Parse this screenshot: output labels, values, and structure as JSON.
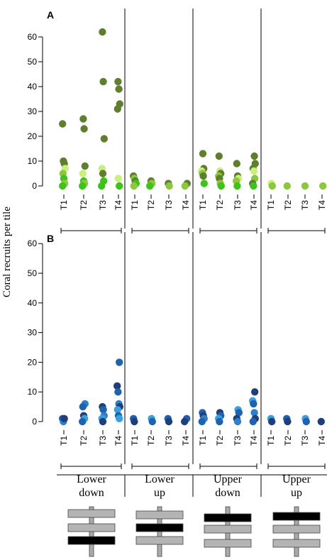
{
  "ylabel": "Coral recruits per tile",
  "timepoints": [
    "T1",
    "T2",
    "T3",
    "T4"
  ],
  "groups": [
    {
      "line1": "Lower",
      "line2": "down",
      "black_plate": 2
    },
    {
      "line1": "Lower",
      "line2": "up",
      "black_plate": 1
    },
    {
      "line1": "Upper",
      "line2": "down",
      "black_plate": 0
    },
    {
      "line1": "Upper",
      "line2": "up",
      "black_plate": 0
    }
  ],
  "chart_data": [
    {
      "panel": "A",
      "type": "scatter",
      "ylim": [
        0,
        60
      ],
      "yticks": [
        0,
        10,
        20,
        30,
        40,
        50,
        60
      ],
      "colors": {
        "dark": "#5f7f2e",
        "mid": "#8dc63f",
        "bright": "#3ec21c",
        "pale": "#c8f07a"
      },
      "points": [
        [
          0,
          0,
          25,
          "dark"
        ],
        [
          0,
          0,
          10,
          "dark"
        ],
        [
          0,
          0,
          9,
          "dark"
        ],
        [
          0,
          0,
          7,
          "pale"
        ],
        [
          0,
          0,
          5,
          "mid"
        ],
        [
          0,
          0,
          3,
          "bright"
        ],
        [
          0,
          0,
          1,
          "mid"
        ],
        [
          0,
          0,
          0,
          "bright"
        ],
        [
          0,
          1,
          27,
          "dark"
        ],
        [
          0,
          1,
          23,
          "dark"
        ],
        [
          0,
          1,
          8,
          "dark"
        ],
        [
          0,
          1,
          5,
          "pale"
        ],
        [
          0,
          1,
          2,
          "bright"
        ],
        [
          0,
          1,
          1,
          "mid"
        ],
        [
          0,
          1,
          0,
          "bright"
        ],
        [
          0,
          2,
          62,
          "dark"
        ],
        [
          0,
          2,
          42,
          "dark"
        ],
        [
          0,
          2,
          19,
          "dark"
        ],
        [
          0,
          2,
          7,
          "pale"
        ],
        [
          0,
          2,
          5,
          "dark"
        ],
        [
          0,
          2,
          2,
          "bright"
        ],
        [
          0,
          2,
          0,
          "bright"
        ],
        [
          0,
          3,
          42,
          "dark"
        ],
        [
          0,
          3,
          39,
          "dark"
        ],
        [
          0,
          3,
          33,
          "dark"
        ],
        [
          0,
          3,
          31,
          "dark"
        ],
        [
          0,
          3,
          3,
          "pale"
        ],
        [
          0,
          3,
          0,
          "bright"
        ],
        [
          1,
          0,
          4,
          "dark"
        ],
        [
          1,
          0,
          3,
          "mid"
        ],
        [
          1,
          0,
          2,
          "dark"
        ],
        [
          1,
          0,
          1,
          "bright"
        ],
        [
          1,
          0,
          0,
          "mid"
        ],
        [
          1,
          1,
          2,
          "dark"
        ],
        [
          1,
          1,
          1,
          "mid"
        ],
        [
          1,
          1,
          0,
          "bright"
        ],
        [
          1,
          2,
          1,
          "dark"
        ],
        [
          1,
          2,
          0,
          "mid"
        ],
        [
          1,
          3,
          1,
          "dark"
        ],
        [
          1,
          3,
          0,
          "mid"
        ],
        [
          2,
          0,
          13,
          "dark"
        ],
        [
          2,
          0,
          7,
          "dark"
        ],
        [
          2,
          0,
          6,
          "pale"
        ],
        [
          2,
          0,
          5,
          "mid"
        ],
        [
          2,
          0,
          4,
          "dark"
        ],
        [
          2,
          0,
          1,
          "bright"
        ],
        [
          2,
          1,
          12,
          "dark"
        ],
        [
          2,
          1,
          6,
          "pale"
        ],
        [
          2,
          1,
          5,
          "dark"
        ],
        [
          2,
          1,
          4,
          "mid"
        ],
        [
          2,
          1,
          3,
          "dark"
        ],
        [
          2,
          1,
          1,
          "mid"
        ],
        [
          2,
          1,
          0,
          "bright"
        ],
        [
          2,
          2,
          9,
          "dark"
        ],
        [
          2,
          2,
          4,
          "dark"
        ],
        [
          2,
          2,
          3,
          "pale"
        ],
        [
          2,
          2,
          2,
          "mid"
        ],
        [
          2,
          2,
          0,
          "bright"
        ],
        [
          2,
          3,
          12,
          "dark"
        ],
        [
          2,
          3,
          9,
          "dark"
        ],
        [
          2,
          3,
          7,
          "dark"
        ],
        [
          2,
          3,
          6,
          "pale"
        ],
        [
          2,
          3,
          3,
          "mid"
        ],
        [
          2,
          3,
          1,
          "dark"
        ],
        [
          2,
          3,
          0,
          "bright"
        ],
        [
          3,
          0,
          1,
          "pale"
        ],
        [
          3,
          0,
          0,
          "mid"
        ],
        [
          3,
          1,
          0,
          "mid"
        ],
        [
          3,
          2,
          0,
          "mid"
        ],
        [
          3,
          3,
          0,
          "mid"
        ]
      ]
    },
    {
      "panel": "B",
      "type": "scatter",
      "ylim": [
        0,
        60
      ],
      "yticks": [
        0,
        10,
        20,
        30,
        40,
        50,
        60
      ],
      "colors": {
        "navy": "#1f3f7a",
        "blue": "#1f62ad",
        "mid": "#2f80c8",
        "light": "#3aa0e0"
      },
      "points": [
        [
          0,
          0,
          1,
          "blue"
        ],
        [
          0,
          0,
          0,
          "mid"
        ],
        [
          0,
          0,
          1,
          "navy"
        ],
        [
          0,
          1,
          6,
          "mid"
        ],
        [
          0,
          1,
          5,
          "blue"
        ],
        [
          0,
          1,
          2,
          "navy"
        ],
        [
          0,
          1,
          1,
          "light"
        ],
        [
          0,
          1,
          0,
          "blue"
        ],
        [
          0,
          2,
          5,
          "navy"
        ],
        [
          0,
          2,
          4,
          "blue"
        ],
        [
          0,
          2,
          2,
          "mid"
        ],
        [
          0,
          2,
          1,
          "light"
        ],
        [
          0,
          2,
          0,
          "navy"
        ],
        [
          0,
          3,
          20,
          "blue"
        ],
        [
          0,
          3,
          12,
          "navy"
        ],
        [
          0,
          3,
          10,
          "blue"
        ],
        [
          0,
          3,
          6,
          "mid"
        ],
        [
          0,
          3,
          5,
          "navy"
        ],
        [
          0,
          3,
          4,
          "light"
        ],
        [
          0,
          3,
          2,
          "blue"
        ],
        [
          0,
          3,
          1,
          "light"
        ],
        [
          1,
          0,
          1,
          "blue"
        ],
        [
          1,
          0,
          0,
          "navy"
        ],
        [
          1,
          1,
          1,
          "light"
        ],
        [
          1,
          1,
          0,
          "blue"
        ],
        [
          1,
          2,
          1,
          "blue"
        ],
        [
          1,
          2,
          0,
          "navy"
        ],
        [
          1,
          3,
          1,
          "blue"
        ],
        [
          1,
          3,
          0,
          "navy"
        ],
        [
          2,
          0,
          3,
          "blue"
        ],
        [
          2,
          0,
          2,
          "navy"
        ],
        [
          2,
          0,
          1,
          "mid"
        ],
        [
          2,
          0,
          0,
          "blue"
        ],
        [
          2,
          1,
          3,
          "navy"
        ],
        [
          2,
          1,
          2,
          "blue"
        ],
        [
          2,
          1,
          1,
          "light"
        ],
        [
          2,
          1,
          0,
          "blue"
        ],
        [
          2,
          2,
          4,
          "light"
        ],
        [
          2,
          2,
          3,
          "blue"
        ],
        [
          2,
          2,
          1,
          "navy"
        ],
        [
          2,
          2,
          0,
          "mid"
        ],
        [
          2,
          3,
          10,
          "navy"
        ],
        [
          2,
          3,
          7,
          "light"
        ],
        [
          2,
          3,
          6,
          "blue"
        ],
        [
          2,
          3,
          3,
          "mid"
        ],
        [
          2,
          3,
          1,
          "navy"
        ],
        [
          2,
          3,
          0,
          "blue"
        ],
        [
          3,
          0,
          1,
          "light"
        ],
        [
          3,
          0,
          0,
          "navy"
        ],
        [
          3,
          1,
          1,
          "blue"
        ],
        [
          3,
          1,
          0,
          "navy"
        ],
        [
          3,
          2,
          1,
          "light"
        ],
        [
          3,
          2,
          0,
          "blue"
        ],
        [
          3,
          3,
          0,
          "navy"
        ]
      ]
    }
  ]
}
